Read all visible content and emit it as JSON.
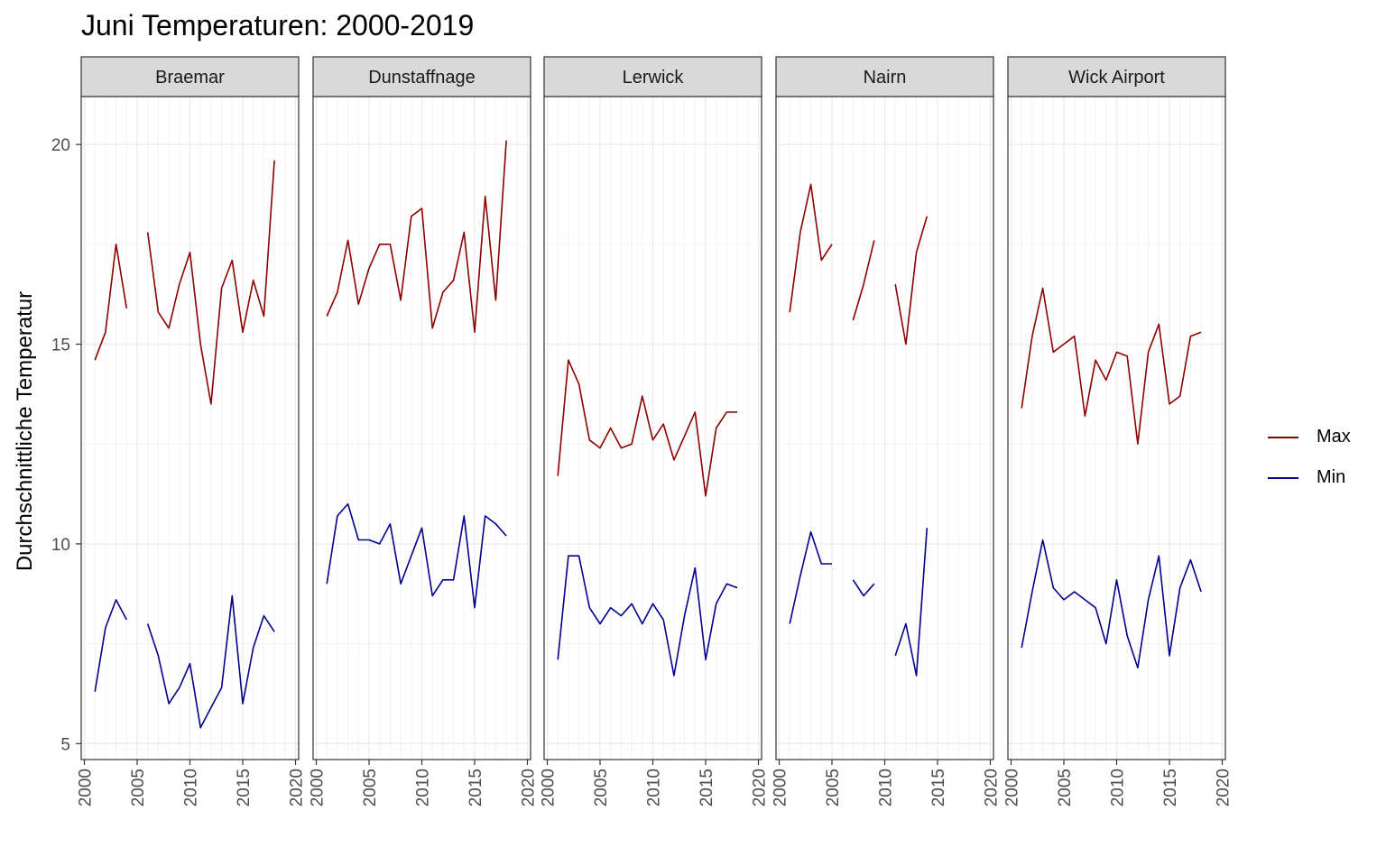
{
  "chart_data": {
    "type": "line",
    "title": "Juni Temperaturen: 2000-2019",
    "xlabel": "",
    "ylabel": "Durchschnittliche Temperatur",
    "xlim": [
      1999.7,
      2020.3
    ],
    "ylim": [
      4.6,
      21.2
    ],
    "x_ticks": [
      2000,
      2005,
      2010,
      2015,
      2020
    ],
    "x_tick_labels": [
      "2000",
      "2005",
      "2010",
      "2015",
      "2020"
    ],
    "y_ticks": [
      5,
      10,
      15,
      20
    ],
    "y_tick_labels": [
      "5",
      "10",
      "15",
      "20"
    ],
    "grid": true,
    "legend_position": "right",
    "series_colors": {
      "Max": "#8b0000",
      "Min": "#00008b"
    },
    "legend": [
      {
        "name": "Max",
        "color": "#8b0000"
      },
      {
        "name": "Min",
        "color": "#00008b"
      }
    ],
    "panels": [
      {
        "name": "Braemar",
        "x": [
          2001,
          2002,
          2003,
          2004,
          2005,
          2006,
          2007,
          2008,
          2009,
          2010,
          2011,
          2012,
          2013,
          2014,
          2015,
          2016,
          2017,
          2018
        ],
        "series": [
          {
            "name": "Max",
            "values": [
              14.6,
              15.3,
              17.5,
              15.9,
              null,
              17.8,
              15.8,
              15.4,
              16.5,
              17.3,
              15.0,
              13.5,
              16.4,
              17.1,
              15.3,
              16.6,
              15.7,
              19.6
            ]
          },
          {
            "name": "Min",
            "values": [
              6.3,
              7.9,
              8.6,
              8.1,
              null,
              8.0,
              7.2,
              6.0,
              6.4,
              7.0,
              5.4,
              5.9,
              6.4,
              8.7,
              6.0,
              7.4,
              8.2,
              7.8
            ]
          }
        ]
      },
      {
        "name": "Dunstaffnage",
        "x": [
          2001,
          2002,
          2003,
          2004,
          2005,
          2006,
          2007,
          2008,
          2009,
          2010,
          2011,
          2012,
          2013,
          2014,
          2015,
          2016,
          2017,
          2018
        ],
        "series": [
          {
            "name": "Max",
            "values": [
              15.7,
              16.3,
              17.6,
              16.0,
              16.9,
              17.5,
              17.5,
              16.1,
              18.2,
              18.4,
              15.4,
              16.3,
              16.6,
              17.8,
              15.3,
              18.7,
              16.1,
              20.1
            ]
          },
          {
            "name": "Min",
            "values": [
              9.0,
              10.7,
              11.0,
              10.1,
              10.1,
              10.0,
              10.5,
              9.0,
              9.7,
              10.4,
              8.7,
              9.1,
              9.1,
              10.7,
              8.4,
              10.7,
              10.5,
              10.2
            ]
          }
        ]
      },
      {
        "name": "Lerwick",
        "x": [
          2001,
          2002,
          2003,
          2004,
          2005,
          2006,
          2007,
          2008,
          2009,
          2010,
          2011,
          2012,
          2013,
          2014,
          2015,
          2016,
          2017,
          2018
        ],
        "series": [
          {
            "name": "Max",
            "values": [
              11.7,
              14.6,
              14.0,
              12.6,
              12.4,
              12.9,
              12.4,
              12.5,
              13.7,
              12.6,
              13.0,
              12.1,
              12.7,
              13.3,
              11.2,
              12.9,
              13.3,
              13.3
            ]
          },
          {
            "name": "Min",
            "values": [
              7.1,
              9.7,
              9.7,
              8.4,
              8.0,
              8.4,
              8.2,
              8.5,
              8.0,
              8.5,
              8.1,
              6.7,
              8.2,
              9.4,
              7.1,
              8.5,
              9.0,
              8.9
            ]
          }
        ]
      },
      {
        "name": "Nairn",
        "x": [
          2001,
          2002,
          2003,
          2004,
          2005,
          2006,
          2007,
          2008,
          2009,
          2010,
          2011,
          2012,
          2013,
          2014,
          2015,
          2016,
          2017,
          2018
        ],
        "series": [
          {
            "name": "Max",
            "values": [
              15.8,
              17.8,
              19.0,
              17.1,
              17.5,
              null,
              15.6,
              16.5,
              17.6,
              null,
              16.5,
              15.0,
              17.3,
              18.2,
              null,
              null,
              null,
              null
            ]
          },
          {
            "name": "Min",
            "values": [
              8.0,
              9.2,
              10.3,
              9.5,
              9.5,
              null,
              9.1,
              8.7,
              9.0,
              null,
              7.2,
              8.0,
              6.7,
              10.4,
              null,
              null,
              null,
              null
            ]
          }
        ]
      },
      {
        "name": "Wick Airport",
        "x": [
          2001,
          2002,
          2003,
          2004,
          2005,
          2006,
          2007,
          2008,
          2009,
          2010,
          2011,
          2012,
          2013,
          2014,
          2015,
          2016,
          2017,
          2018
        ],
        "series": [
          {
            "name": "Max",
            "values": [
              13.4,
              15.2,
              16.4,
              14.8,
              15.0,
              15.2,
              13.2,
              14.6,
              14.1,
              14.8,
              14.7,
              12.5,
              14.8,
              15.5,
              13.5,
              13.7,
              15.2,
              15.3
            ]
          },
          {
            "name": "Min",
            "values": [
              7.4,
              8.8,
              10.1,
              8.9,
              8.6,
              8.8,
              8.6,
              8.4,
              7.5,
              9.1,
              7.7,
              6.9,
              8.6,
              9.7,
              7.2,
              8.9,
              9.6,
              8.8
            ]
          }
        ]
      }
    ]
  }
}
